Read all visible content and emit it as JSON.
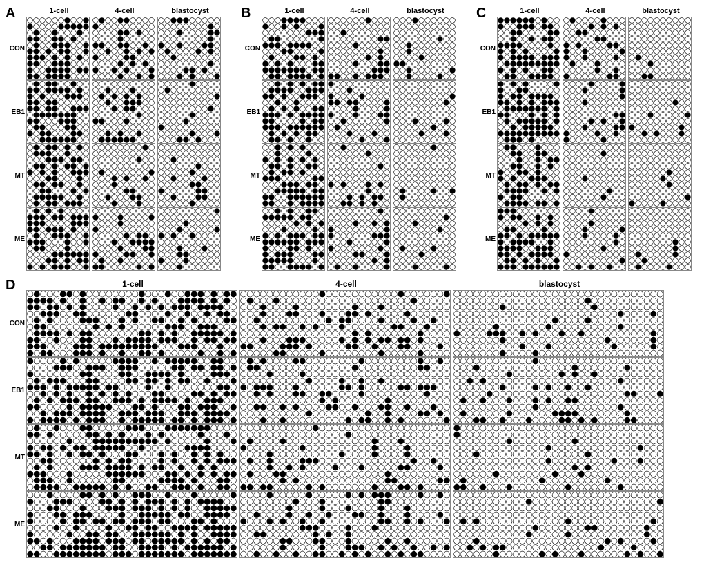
{
  "figure": {
    "background_color": "#ffffff",
    "grid_border_color": "#888888",
    "dot_stroke": "#000000",
    "dot_fill_filled": "#000000",
    "dot_fill_empty": "#ffffff",
    "panel_letters": [
      "A",
      "B",
      "C",
      "D"
    ],
    "row_labels": [
      "CON",
      "EB1",
      "MT",
      "ME"
    ],
    "col_labels": [
      "1-cell",
      "4-cell",
      "blastocyst"
    ],
    "panel_letter_fontsize": 20,
    "row_label_fontsize": 10,
    "col_label_fontsize": 11,
    "top_panels": {
      "grid": {
        "cols": 10,
        "rows": 10,
        "dot_diam": 8.8,
        "gap": 0.2
      },
      "A": {
        "CON": {
          "1-cell": {
            "density": 0.6,
            "seed": 11
          },
          "4-cell": {
            "density": 0.33,
            "seed": 12
          },
          "blastocyst": {
            "density": 0.25,
            "seed": 13
          }
        },
        "EB1": {
          "1-cell": {
            "density": 0.58,
            "seed": 14
          },
          "4-cell": {
            "density": 0.3,
            "seed": 15
          },
          "blastocyst": {
            "density": 0.22,
            "seed": 16
          }
        },
        "MT": {
          "1-cell": {
            "density": 0.55,
            "seed": 17
          },
          "4-cell": {
            "density": 0.28,
            "seed": 18
          },
          "blastocyst": {
            "density": 0.18,
            "seed": 19
          }
        },
        "ME": {
          "1-cell": {
            "density": 0.6,
            "seed": 20
          },
          "4-cell": {
            "density": 0.32,
            "seed": 21
          },
          "blastocyst": {
            "density": 0.2,
            "seed": 22
          }
        }
      },
      "B": {
        "CON": {
          "1-cell": {
            "density": 0.62,
            "seed": 31
          },
          "4-cell": {
            "density": 0.3,
            "seed": 32
          },
          "blastocyst": {
            "density": 0.18,
            "seed": 33
          }
        },
        "EB1": {
          "1-cell": {
            "density": 0.6,
            "seed": 34
          },
          "4-cell": {
            "density": 0.28,
            "seed": 35
          },
          "blastocyst": {
            "density": 0.15,
            "seed": 36
          }
        },
        "MT": {
          "1-cell": {
            "density": 0.55,
            "seed": 37
          },
          "4-cell": {
            "density": 0.22,
            "seed": 38
          },
          "blastocyst": {
            "density": 0.12,
            "seed": 39
          }
        },
        "ME": {
          "1-cell": {
            "density": 0.62,
            "seed": 40
          },
          "4-cell": {
            "density": 0.3,
            "seed": 41
          },
          "blastocyst": {
            "density": 0.18,
            "seed": 42
          }
        }
      },
      "C": {
        "CON": {
          "1-cell": {
            "density": 0.62,
            "seed": 51
          },
          "4-cell": {
            "density": 0.3,
            "seed": 52
          },
          "blastocyst": {
            "density": 0.12,
            "seed": 53
          }
        },
        "EB1": {
          "1-cell": {
            "density": 0.65,
            "seed": 54
          },
          "4-cell": {
            "density": 0.25,
            "seed": 55
          },
          "blastocyst": {
            "density": 0.15,
            "seed": 56
          }
        },
        "MT": {
          "1-cell": {
            "density": 0.55,
            "seed": 57
          },
          "4-cell": {
            "density": 0.15,
            "seed": 58
          },
          "blastocyst": {
            "density": 0.1,
            "seed": 59
          }
        },
        "ME": {
          "1-cell": {
            "density": 0.6,
            "seed": 60
          },
          "4-cell": {
            "density": 0.22,
            "seed": 61
          },
          "blastocyst": {
            "density": 0.12,
            "seed": 62
          }
        }
      }
    },
    "bottom_panel": {
      "grid": {
        "cols": 32,
        "rows": 10,
        "dot_diam": 9.3,
        "gap": 0.2
      },
      "D": {
        "CON": {
          "1-cell": {
            "density": 0.6,
            "seed": 71
          },
          "4-cell": {
            "density": 0.28,
            "seed": 72
          },
          "blastocyst": {
            "density": 0.18,
            "seed": 73
          }
        },
        "EB1": {
          "1-cell": {
            "density": 0.62,
            "seed": 74
          },
          "4-cell": {
            "density": 0.3,
            "seed": 75
          },
          "blastocyst": {
            "density": 0.22,
            "seed": 76
          }
        },
        "MT": {
          "1-cell": {
            "density": 0.55,
            "seed": 77
          },
          "4-cell": {
            "density": 0.2,
            "seed": 78
          },
          "blastocyst": {
            "density": 0.15,
            "seed": 79
          }
        },
        "ME": {
          "1-cell": {
            "density": 0.62,
            "seed": 80
          },
          "4-cell": {
            "density": 0.3,
            "seed": 81
          },
          "blastocyst": {
            "density": 0.2,
            "seed": 82
          }
        }
      }
    }
  }
}
